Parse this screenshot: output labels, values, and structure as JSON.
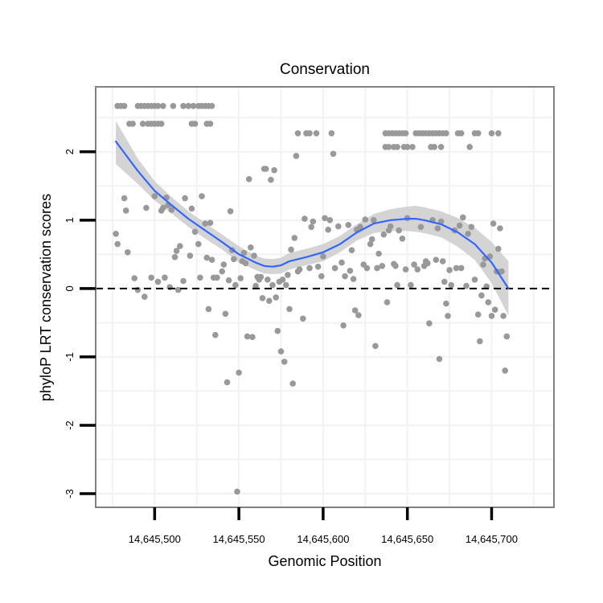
{
  "chart_data": {
    "type": "scatter",
    "title": "Conservation",
    "xlabel": "Genomic Position",
    "ylabel": "phyloP LRT conservation scores",
    "xlim": [
      14645465,
      14645737
    ],
    "ylim": [
      -3.2,
      2.95
    ],
    "x_ticks": [
      14645500,
      14645550,
      14645600,
      14645650,
      14645700
    ],
    "x_tick_labels": [
      "14,645,500",
      "14,645,550",
      "14,645,600",
      "14,645,650",
      "14,645,700"
    ],
    "y_ticks": [
      -3,
      -2,
      -1,
      0,
      1,
      2
    ],
    "y_tick_labels": [
      "-3",
      "-2",
      "-1",
      "0",
      "1",
      "2"
    ],
    "grid": true,
    "reference_line": {
      "y": 0,
      "style": "dashed"
    },
    "colors": {
      "points": "#999999",
      "smooth_line": "#3366FF",
      "ribbon": "#cccccc",
      "grid": "#f2f2f2",
      "panel_border": "#808080"
    },
    "series": [
      {
        "name": "scores",
        "kind": "points",
        "points": [
          [
            14645478,
            2.67
          ],
          [
            14645480,
            2.67
          ],
          [
            14645482,
            2.67
          ],
          [
            14645485,
            2.41
          ],
          [
            14645487,
            2.41
          ],
          [
            14645490,
            2.67
          ],
          [
            14645492,
            2.67
          ],
          [
            14645494,
            2.67
          ],
          [
            14645496,
            2.67
          ],
          [
            14645498,
            2.67
          ],
          [
            14645500,
            2.67
          ],
          [
            14645502,
            2.67
          ],
          [
            14645493,
            2.41
          ],
          [
            14645496,
            2.41
          ],
          [
            14645498,
            2.41
          ],
          [
            14645500,
            2.41
          ],
          [
            14645502,
            2.41
          ],
          [
            14645504,
            2.41
          ],
          [
            14645505,
            2.67
          ],
          [
            14645511,
            2.67
          ],
          [
            14645517,
            2.67
          ],
          [
            14645520,
            2.67
          ],
          [
            14645523,
            2.67
          ],
          [
            14645526,
            2.67
          ],
          [
            14645528,
            2.67
          ],
          [
            14645530,
            2.67
          ],
          [
            14645532,
            2.67
          ],
          [
            14645534,
            2.67
          ],
          [
            14645522,
            2.41
          ],
          [
            14645524,
            2.41
          ],
          [
            14645531,
            2.41
          ],
          [
            14645533,
            2.41
          ],
          [
            14645477,
            0.8
          ],
          [
            14645478,
            0.65
          ],
          [
            14645482,
            1.32
          ],
          [
            14645483,
            1.14
          ],
          [
            14645484,
            0.53
          ],
          [
            14645488,
            0.15
          ],
          [
            14645490,
            -0.02
          ],
          [
            14645494,
            -0.12
          ],
          [
            14645495,
            1.18
          ],
          [
            14645498,
            0.16
          ],
          [
            14645500,
            1.35
          ],
          [
            14645502,
            0.1
          ],
          [
            14645504,
            1.14
          ],
          [
            14645505,
            1.18
          ],
          [
            14645506,
            0.16
          ],
          [
            14645507,
            1.33
          ],
          [
            14645508,
            1.22
          ],
          [
            14645509,
            0.02
          ],
          [
            14645510,
            1.15
          ],
          [
            14645512,
            0.46
          ],
          [
            14645513,
            0.55
          ],
          [
            14645514,
            -0.02
          ],
          [
            14645515,
            0.62
          ],
          [
            14645517,
            0.11
          ],
          [
            14645518,
            1.32
          ],
          [
            14645521,
            0.48
          ],
          [
            14645522,
            1.17
          ],
          [
            14645524,
            0.83
          ],
          [
            14645526,
            0.65
          ],
          [
            14645527,
            0.16
          ],
          [
            14645528,
            1.35
          ],
          [
            14645530,
            0.95
          ],
          [
            14645531,
            0.45
          ],
          [
            14645532,
            -0.3
          ],
          [
            14645533,
            0.96
          ],
          [
            14645534,
            0.42
          ],
          [
            14645535,
            0.16
          ],
          [
            14645536,
            -0.68
          ],
          [
            14645537,
            0.16
          ],
          [
            14645540,
            0.25
          ],
          [
            14645541,
            0.35
          ],
          [
            14645542,
            -0.37
          ],
          [
            14645543,
            -1.37
          ],
          [
            14645544,
            0.12
          ],
          [
            14645545,
            1.13
          ],
          [
            14645546,
            0.56
          ],
          [
            14645547,
            0.43
          ],
          [
            14645548,
            0.05
          ],
          [
            14645549,
            -2.97
          ],
          [
            14645550,
            -1.23
          ],
          [
            14645551,
            0.15
          ],
          [
            14645552,
            0.4
          ],
          [
            14645553,
            0.52
          ],
          [
            14645554,
            0.37
          ],
          [
            14645555,
            -0.7
          ],
          [
            14645556,
            1.6
          ],
          [
            14645557,
            0.6
          ],
          [
            14645558,
            -0.71
          ],
          [
            14645559,
            0.48
          ],
          [
            14645560,
            0.04
          ],
          [
            14645561,
            0.17
          ],
          [
            14645562,
            0.13
          ],
          [
            14645563,
            0.17
          ],
          [
            14645564,
            -0.14
          ],
          [
            14645565,
            1.75
          ],
          [
            14645566,
            1.75
          ],
          [
            14645567,
            0.13
          ],
          [
            14645568,
            -0.18
          ],
          [
            14645569,
            1.59
          ],
          [
            14645570,
            0.05
          ],
          [
            14645571,
            1.73
          ],
          [
            14645572,
            -0.13
          ],
          [
            14645573,
            -0.62
          ],
          [
            14645574,
            0.1
          ],
          [
            14645575,
            -0.92
          ],
          [
            14645576,
            0.13
          ],
          [
            14645577,
            -1.07
          ],
          [
            14645578,
            0.05
          ],
          [
            14645579,
            0.2
          ],
          [
            14645580,
            -0.3
          ],
          [
            14645581,
            0.57
          ],
          [
            14645582,
            -1.39
          ],
          [
            14645583,
            0.74
          ],
          [
            14645584,
            1.94
          ],
          [
            14645585,
            0.25
          ],
          [
            14645586,
            0.28
          ],
          [
            14645588,
            -0.44
          ],
          [
            14645589,
            1.02
          ],
          [
            14645590,
            2.27
          ],
          [
            14645592,
            0.3
          ],
          [
            14645593,
            0.9
          ],
          [
            14645594,
            0.98
          ],
          [
            14645596,
            2.27
          ],
          [
            14645597,
            0.32
          ],
          [
            14645599,
            0.18
          ],
          [
            14645600,
            0.47
          ],
          [
            14645601,
            1.03
          ],
          [
            14645603,
            0.86
          ],
          [
            14645604,
            1.0
          ],
          [
            14645605,
            2.27
          ],
          [
            14645606,
            1.97
          ],
          [
            14645607,
            0.3
          ],
          [
            14645609,
            0.91
          ],
          [
            14645611,
            0.38
          ],
          [
            14645612,
            -0.54
          ],
          [
            14645613,
            0.18
          ],
          [
            14645615,
            0.93
          ],
          [
            14645616,
            0.26
          ],
          [
            14645617,
            0.56
          ],
          [
            14645618,
            0.14
          ],
          [
            14645619,
            -0.32
          ],
          [
            14645620,
            0.86
          ],
          [
            14645621,
            -0.39
          ],
          [
            14645622,
            0.9
          ],
          [
            14645624,
            0.35
          ],
          [
            14645625,
            1.01
          ],
          [
            14645626,
            0.3
          ],
          [
            14645628,
            0.65
          ],
          [
            14645629,
            0.72
          ],
          [
            14645630,
            1.0
          ],
          [
            14645631,
            -0.84
          ],
          [
            14645632,
            0.3
          ],
          [
            14645633,
            0.51
          ],
          [
            14645635,
            0.33
          ],
          [
            14645636,
            0.79
          ],
          [
            14645638,
            -0.2
          ],
          [
            14645639,
            0.85
          ],
          [
            14645640,
            0.91
          ],
          [
            14645642,
            0.36
          ],
          [
            14645643,
            0.33
          ],
          [
            14645644,
            0.05
          ],
          [
            14645645,
            0.85
          ],
          [
            14645647,
            0.73
          ],
          [
            14645649,
            0.28
          ],
          [
            14645650,
            1.03
          ],
          [
            14645652,
            0.05
          ],
          [
            14645654,
            0.35
          ],
          [
            14645656,
            0.28
          ],
          [
            14645658,
            0.9
          ],
          [
            14645660,
            0.33
          ],
          [
            14645661,
            0.4
          ],
          [
            14645662,
            0.37
          ],
          [
            14645663,
            -0.51
          ],
          [
            14645665,
            1.0
          ],
          [
            14645667,
            0.42
          ],
          [
            14645668,
            0.88
          ],
          [
            14645669,
            -1.03
          ],
          [
            14645670,
            0.98
          ],
          [
            14645671,
            0.4
          ],
          [
            14645672,
            0.1
          ],
          [
            14645673,
            -0.22
          ],
          [
            14645674,
            -0.4
          ],
          [
            14645675,
            0.27
          ],
          [
            14645676,
            0.05
          ],
          [
            14645678,
            0.85
          ],
          [
            14645679,
            0.3
          ],
          [
            14645681,
            0.92
          ],
          [
            14645682,
            0.3
          ],
          [
            14645683,
            1.04
          ],
          [
            14645685,
            0.04
          ],
          [
            14645686,
            0.8
          ],
          [
            14645688,
            0.9
          ],
          [
            14645690,
            0.13
          ],
          [
            14645692,
            -0.38
          ],
          [
            14645693,
            -0.77
          ],
          [
            14645694,
            -0.1
          ],
          [
            14645695,
            0.35
          ],
          [
            14645696,
            0.44
          ],
          [
            14645697,
            0.03
          ],
          [
            14645698,
            -0.2
          ],
          [
            14645699,
            0.47
          ],
          [
            14645700,
            -0.4
          ],
          [
            14645701,
            0.95
          ],
          [
            14645702,
            -0.31
          ],
          [
            14645703,
            0.25
          ],
          [
            14645704,
            0.58
          ],
          [
            14645705,
            0.88
          ],
          [
            14645706,
            0.25
          ],
          [
            14645707,
            -0.4
          ],
          [
            14645708,
            -1.2
          ],
          [
            14645709,
            -0.7
          ],
          [
            14645585,
            2.27
          ],
          [
            14645592,
            2.27
          ],
          [
            14645637,
            2.27
          ],
          [
            14645639,
            2.27
          ],
          [
            14645641,
            2.27
          ],
          [
            14645643,
            2.27
          ],
          [
            14645645,
            2.27
          ],
          [
            14645647,
            2.27
          ],
          [
            14645649,
            2.27
          ],
          [
            14645655,
            2.27
          ],
          [
            14645657,
            2.27
          ],
          [
            14645659,
            2.27
          ],
          [
            14645661,
            2.27
          ],
          [
            14645663,
            2.27
          ],
          [
            14645665,
            2.27
          ],
          [
            14645667,
            2.27
          ],
          [
            14645669,
            2.27
          ],
          [
            14645671,
            2.27
          ],
          [
            14645673,
            2.27
          ],
          [
            14645680,
            2.27
          ],
          [
            14645682,
            2.27
          ],
          [
            14645690,
            2.27
          ],
          [
            14645692,
            2.27
          ],
          [
            14645700,
            2.27
          ],
          [
            14645704,
            2.27
          ],
          [
            14645637,
            2.07
          ],
          [
            14645639,
            2.07
          ],
          [
            14645642,
            2.07
          ],
          [
            14645644,
            2.07
          ],
          [
            14645648,
            2.07
          ],
          [
            14645650,
            2.07
          ],
          [
            14645653,
            2.07
          ],
          [
            14645664,
            2.07
          ],
          [
            14645666,
            2.07
          ],
          [
            14645670,
            2.07
          ],
          [
            14645687,
            2.07
          ]
        ]
      },
      {
        "name": "loess fit",
        "kind": "smooth",
        "x": [
          14645477,
          14645490,
          14645500,
          14645510,
          14645520,
          14645530,
          14645540,
          14645550,
          14645560,
          14645565,
          14645570,
          14645575,
          14645580,
          14645590,
          14645600,
          14645610,
          14645620,
          14645630,
          14645640,
          14645650,
          14645655,
          14645660,
          14645670,
          14645680,
          14645690,
          14645700,
          14645710
        ],
        "y": [
          2.15,
          1.72,
          1.43,
          1.22,
          1.02,
          0.85,
          0.68,
          0.5,
          0.38,
          0.33,
          0.32,
          0.34,
          0.4,
          0.46,
          0.53,
          0.65,
          0.82,
          0.95,
          1.0,
          1.02,
          1.02,
          1.0,
          0.94,
          0.82,
          0.65,
          0.38,
          0.0
        ],
        "ci_upper": [
          2.45,
          1.9,
          1.57,
          1.34,
          1.13,
          0.96,
          0.79,
          0.62,
          0.48,
          0.44,
          0.43,
          0.45,
          0.52,
          0.58,
          0.65,
          0.77,
          0.94,
          1.09,
          1.16,
          1.2,
          1.21,
          1.19,
          1.13,
          1.03,
          0.89,
          0.68,
          0.4
        ],
        "ci_lower": [
          1.82,
          1.53,
          1.29,
          1.1,
          0.9,
          0.73,
          0.57,
          0.38,
          0.27,
          0.22,
          0.21,
          0.22,
          0.28,
          0.34,
          0.4,
          0.53,
          0.7,
          0.81,
          0.84,
          0.84,
          0.83,
          0.81,
          0.75,
          0.61,
          0.42,
          0.08,
          -0.4
        ]
      }
    ]
  }
}
